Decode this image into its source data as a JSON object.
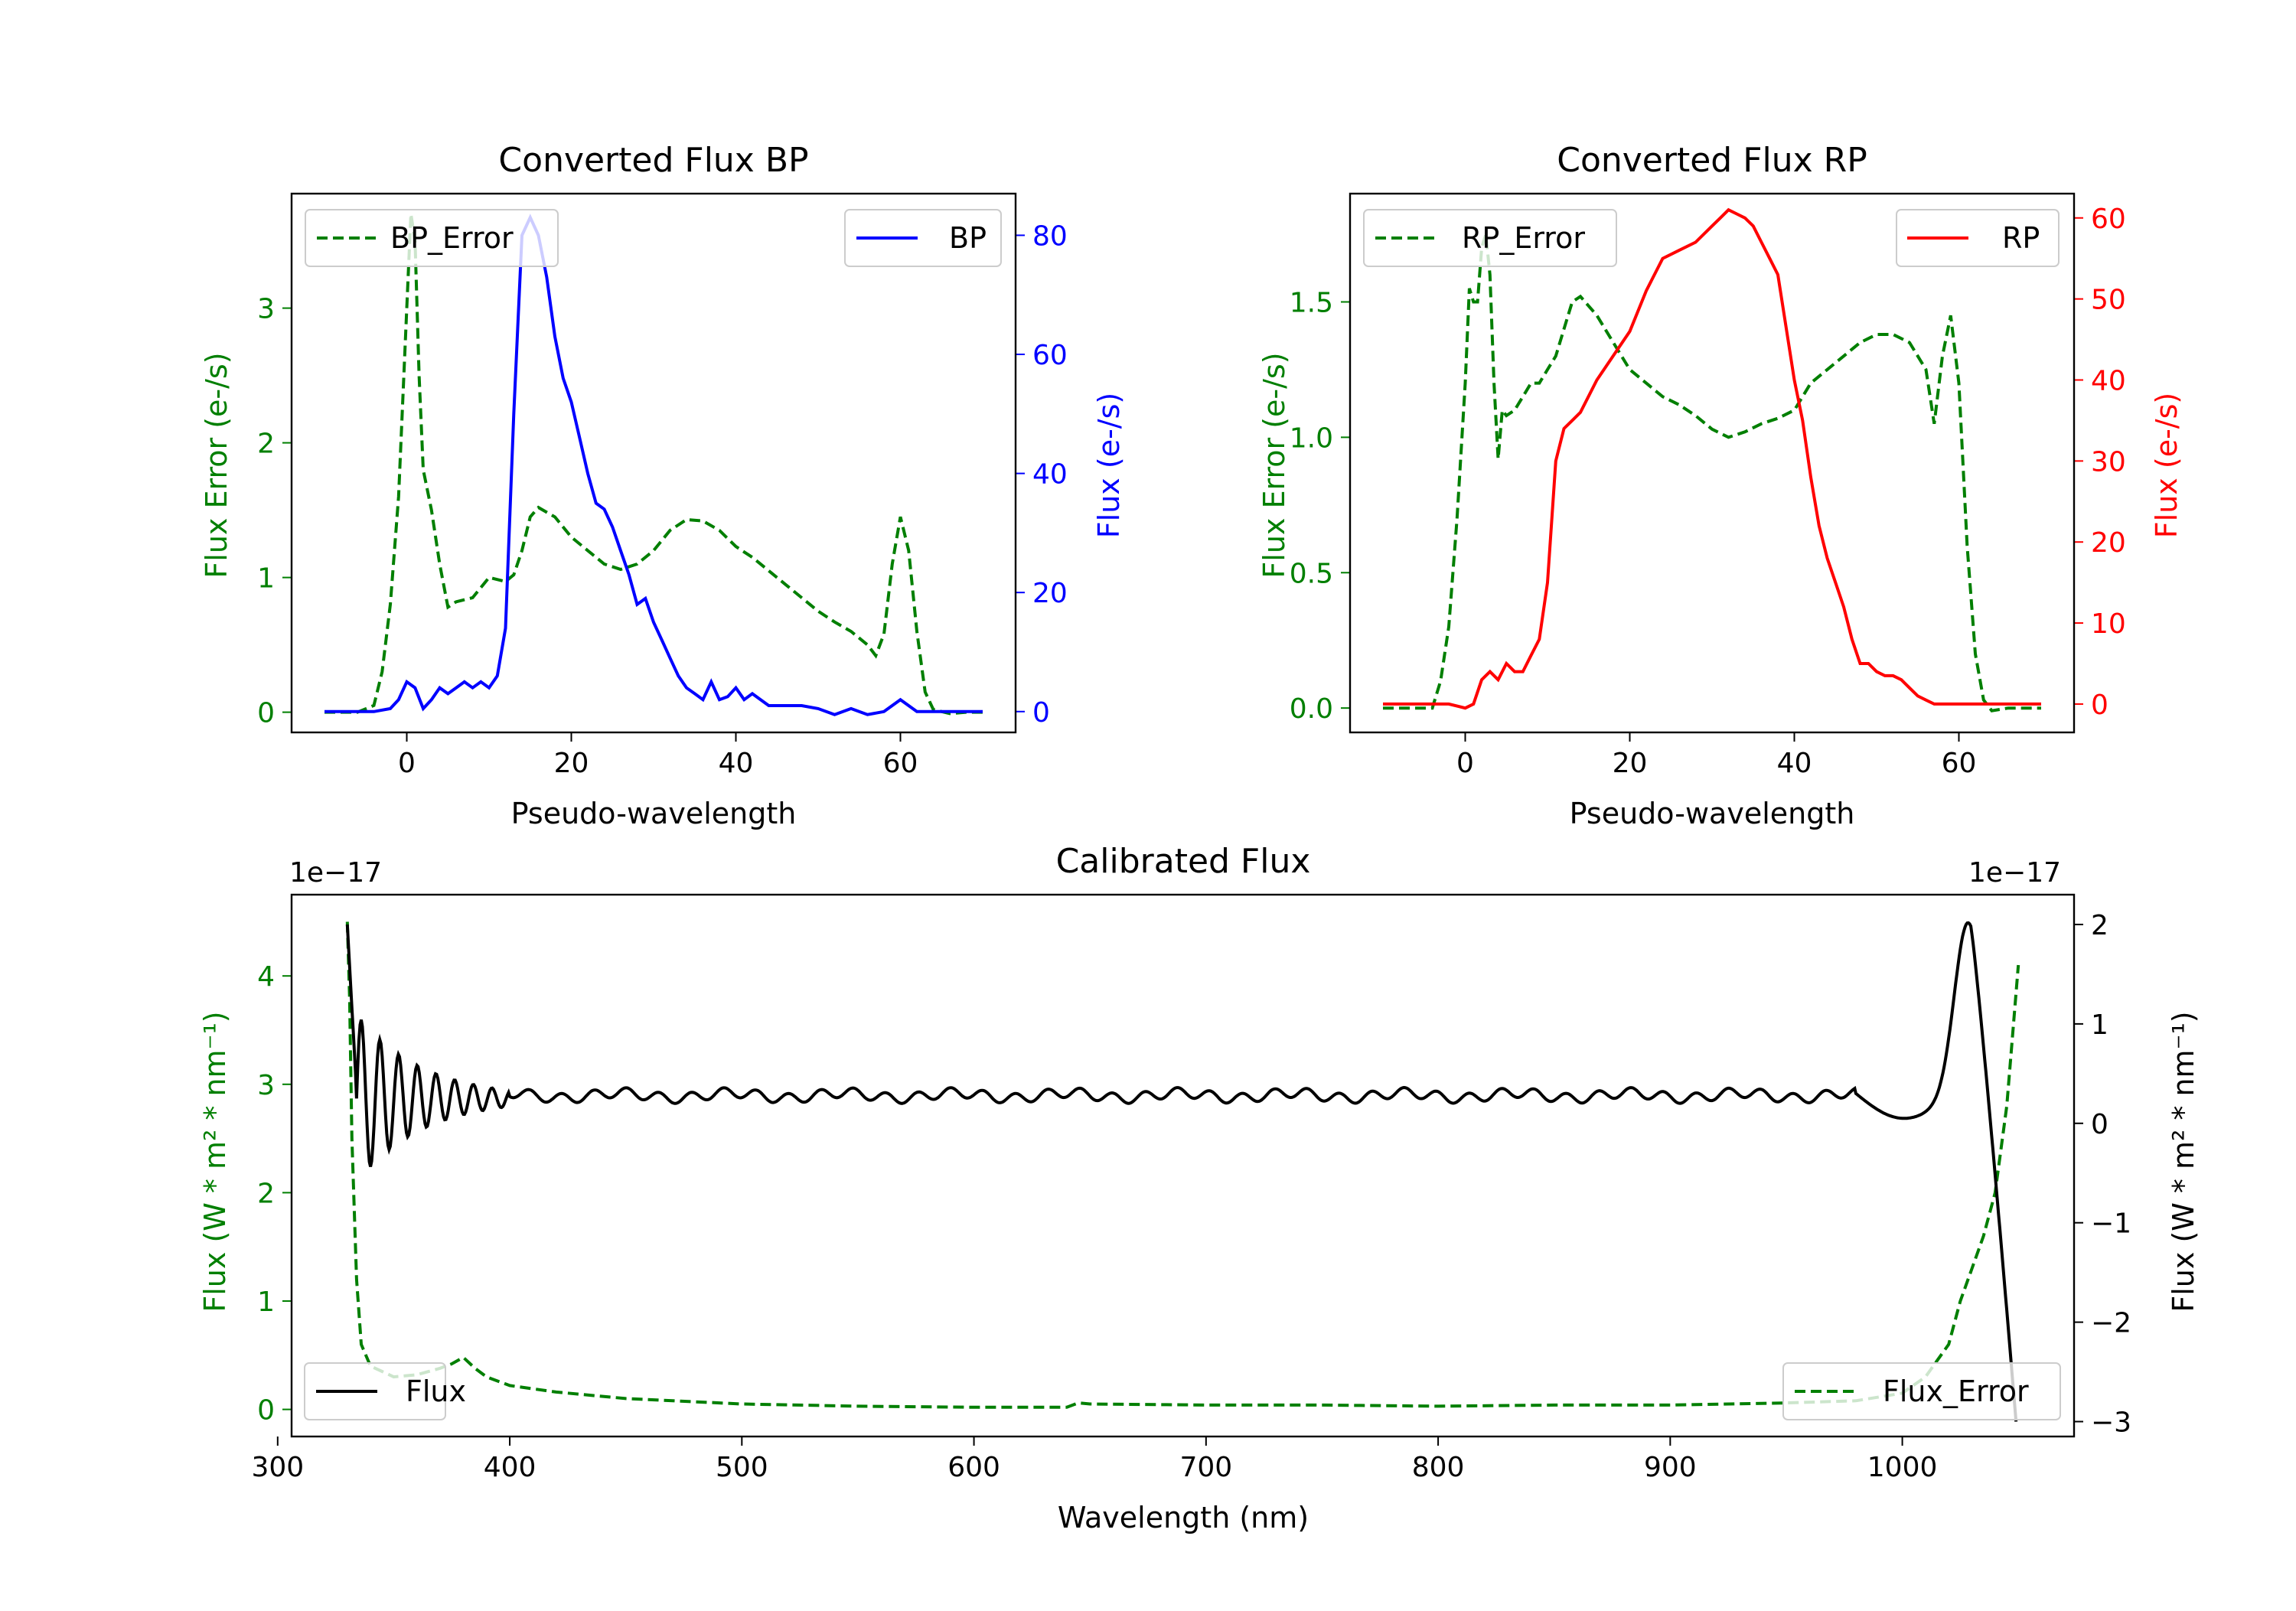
{
  "chart_data": [
    {
      "id": "bp",
      "type": "line",
      "title": "Converted Flux BP",
      "xlabel": "Pseudo-wavelength",
      "ylabel_left": "Flux Error (e-/s)",
      "ylabel_right": "Flux (e-/s)",
      "xlim": [
        -14,
        74
      ],
      "ylim_left": [
        -0.15,
        3.85
      ],
      "ylim_right": [
        -3.5,
        87
      ],
      "xticks": [
        0,
        20,
        40,
        60
      ],
      "yticks_left": [
        0,
        1,
        2,
        3
      ],
      "yticks_right": [
        0,
        20,
        40,
        60,
        80
      ],
      "legend_left": "BP_Error",
      "legend_right": "BP",
      "colors": {
        "flux": "#0000ff",
        "error": "#007f00",
        "right_axis": "#0000ff",
        "left_axis": "#007f00"
      },
      "series": [
        {
          "name": "BP_Error",
          "axis": "left",
          "style": "dashed",
          "x": [
            -10,
            -6,
            -4,
            -3,
            -2,
            -1,
            0,
            0.5,
            1,
            1.5,
            2,
            3,
            4,
            5,
            6,
            8,
            10,
            12,
            13,
            14,
            15,
            16,
            18,
            20,
            22,
            24,
            26,
            28,
            30,
            32,
            34,
            36,
            38,
            40,
            42,
            44,
            46,
            48,
            50,
            52,
            54,
            56,
            57,
            58,
            59,
            60,
            61,
            62,
            63,
            64,
            66,
            68,
            70
          ],
          "y": [
            0,
            0,
            0.05,
            0.3,
            0.8,
            1.6,
            3.0,
            3.7,
            3.5,
            2.5,
            1.8,
            1.5,
            1.1,
            0.78,
            0.82,
            0.85,
            1.0,
            0.97,
            1.02,
            1.2,
            1.45,
            1.52,
            1.45,
            1.3,
            1.2,
            1.1,
            1.06,
            1.1,
            1.2,
            1.35,
            1.43,
            1.42,
            1.35,
            1.23,
            1.15,
            1.05,
            0.95,
            0.85,
            0.75,
            0.67,
            0.6,
            0.5,
            0.42,
            0.58,
            1.1,
            1.45,
            1.2,
            0.6,
            0.15,
            0.02,
            -0.01,
            0,
            0
          ]
        },
        {
          "name": "BP",
          "axis": "right",
          "style": "solid",
          "x": [
            -10,
            -6,
            -4,
            -2,
            -1,
            0,
            1,
            2,
            3,
            4,
            5,
            6,
            7,
            8,
            9,
            10,
            11,
            12,
            13,
            14,
            15,
            16,
            17,
            18,
            19,
            20,
            21,
            22,
            23,
            24,
            25,
            26,
            27,
            28,
            29,
            30,
            31,
            32,
            33,
            34,
            35,
            36,
            37,
            38,
            39,
            40,
            41,
            42,
            43,
            44,
            46,
            48,
            50,
            52,
            54,
            56,
            58,
            60,
            62,
            64,
            66,
            70
          ],
          "y": [
            0,
            0,
            0,
            0.5,
            2,
            5,
            4,
            0.5,
            2,
            4,
            3,
            4,
            5,
            4,
            5,
            4,
            6,
            14,
            50,
            80,
            83,
            80,
            73,
            63,
            56,
            52,
            46,
            40,
            35,
            34,
            31,
            27,
            23,
            18,
            19,
            15,
            12,
            9,
            6,
            4,
            3,
            2,
            5,
            2,
            2.5,
            4,
            2,
            3,
            2,
            1,
            1,
            1,
            0.5,
            -0.5,
            0.5,
            -0.5,
            0,
            2,
            0,
            0,
            0,
            0
          ]
        }
      ]
    },
    {
      "id": "rp",
      "type": "line",
      "title": "Converted Flux RP",
      "xlabel": "Pseudo-wavelength",
      "ylabel_left": "Flux Error (e-/s)",
      "ylabel_right": "Flux (e-/s)",
      "xlim": [
        -14,
        74
      ],
      "ylim_left": [
        -0.09,
        1.9
      ],
      "ylim_right": [
        -3.5,
        63
      ],
      "xticks": [
        0,
        20,
        40,
        60
      ],
      "yticks_left": [
        0.0,
        0.5,
        1.0,
        1.5
      ],
      "yticks_right": [
        0,
        10,
        20,
        30,
        40,
        50,
        60
      ],
      "legend_left": "RP_Error",
      "legend_right": "RP",
      "colors": {
        "flux": "#ff0000",
        "error": "#007f00",
        "right_axis": "#ff0000",
        "left_axis": "#007f00"
      },
      "series": [
        {
          "name": "RP_Error",
          "axis": "left",
          "style": "dashed",
          "x": [
            -10,
            -6,
            -4,
            -3,
            -2,
            -1,
            0,
            0.5,
            1,
            1.5,
            2,
            2.5,
            3,
            3.5,
            4,
            4.5,
            5,
            6,
            7,
            8,
            9,
            10,
            11,
            12,
            13,
            14,
            16,
            18,
            20,
            22,
            24,
            26,
            28,
            30,
            32,
            34,
            36,
            38,
            40,
            42,
            44,
            46,
            48,
            50,
            52,
            54,
            55,
            56,
            57,
            58,
            59,
            60,
            61,
            62,
            63,
            64,
            66,
            70
          ],
          "y": [
            0,
            0,
            0,
            0.1,
            0.3,
            0.7,
            1.2,
            1.55,
            1.5,
            1.5,
            1.7,
            1.75,
            1.6,
            1.2,
            0.92,
            1.1,
            1.08,
            1.1,
            1.15,
            1.2,
            1.2,
            1.25,
            1.3,
            1.4,
            1.5,
            1.52,
            1.45,
            1.35,
            1.25,
            1.2,
            1.15,
            1.12,
            1.08,
            1.03,
            1.0,
            1.02,
            1.05,
            1.07,
            1.1,
            1.2,
            1.25,
            1.3,
            1.35,
            1.38,
            1.38,
            1.35,
            1.3,
            1.25,
            1.05,
            1.3,
            1.45,
            1.2,
            0.6,
            0.2,
            0.03,
            -0.01,
            0,
            0
          ]
        },
        {
          "name": "RP",
          "axis": "right",
          "style": "solid",
          "x": [
            -10,
            -4,
            -2,
            0,
            1,
            2,
            3,
            4,
            5,
            6,
            7,
            8,
            9,
            10,
            11,
            12,
            13,
            14,
            16,
            18,
            20,
            22,
            24,
            26,
            28,
            30,
            31,
            32,
            33,
            34,
            35,
            36,
            37,
            38,
            40,
            41,
            42,
            43,
            44,
            45,
            46,
            47,
            48,
            49,
            50,
            51,
            52,
            53,
            54,
            55,
            56,
            57,
            58,
            59,
            60,
            62,
            66,
            70
          ],
          "y": [
            0,
            0,
            0,
            -0.5,
            0,
            3,
            4,
            3,
            5,
            4,
            4,
            6,
            8,
            15,
            30,
            34,
            35,
            36,
            40,
            43,
            46,
            51,
            55,
            56,
            57,
            59,
            60,
            61,
            60.5,
            60,
            59,
            57,
            55,
            53,
            40,
            35,
            28,
            22,
            18,
            15,
            12,
            8,
            5,
            5,
            4,
            3.5,
            3.5,
            3,
            2,
            1,
            0.5,
            0,
            0,
            0,
            0,
            0,
            0,
            0
          ]
        }
      ]
    },
    {
      "id": "cal",
      "type": "line",
      "title": "Calibrated Flux",
      "xlabel": "Wavelength (nm)",
      "ylabel_left": "Flux (W * m² * nm⁻¹)",
      "ylabel_right": "Flux (W * m² * nm⁻¹)",
      "offset_left": "1e−17",
      "offset_right": "1e−17",
      "xlim": [
        306,
        1074
      ],
      "ylim_left": [
        -0.25,
        4.75
      ],
      "ylim_right": [
        -3.15,
        2.3
      ],
      "xticks": [
        300,
        400,
        500,
        600,
        700,
        800,
        900,
        1000
      ],
      "yticks_left": [
        0,
        1,
        2,
        3,
        4
      ],
      "yticks_right": [
        -3,
        -2,
        -1,
        0,
        1,
        2
      ],
      "legend_left": "Flux",
      "legend_right": "Flux_Error",
      "colors": {
        "flux": "#000000",
        "error": "#007f00",
        "right_axis": "#000000",
        "left_axis": "#007f00"
      },
      "series": [
        {
          "name": "Flux_Error",
          "axis": "left",
          "style": "dashed",
          "x": [
            330,
            331,
            332,
            334,
            336,
            340,
            345,
            350,
            360,
            370,
            375,
            380,
            385,
            390,
            400,
            420,
            450,
            500,
            550,
            600,
            640,
            645,
            650,
            700,
            750,
            800,
            850,
            900,
            950,
            980,
            1000,
            1010,
            1020,
            1025,
            1030,
            1035,
            1040,
            1045,
            1050
          ],
          "y": [
            4.5,
            3.8,
            2.5,
            1.2,
            0.6,
            0.4,
            0.35,
            0.3,
            0.32,
            0.38,
            0.42,
            0.48,
            0.38,
            0.3,
            0.22,
            0.16,
            0.1,
            0.05,
            0.03,
            0.02,
            0.02,
            0.06,
            0.05,
            0.04,
            0.04,
            0.03,
            0.04,
            0.04,
            0.06,
            0.08,
            0.15,
            0.3,
            0.6,
            1.0,
            1.3,
            1.6,
            2.0,
            2.8,
            4.1
          ]
        }
      ]
    }
  ]
}
